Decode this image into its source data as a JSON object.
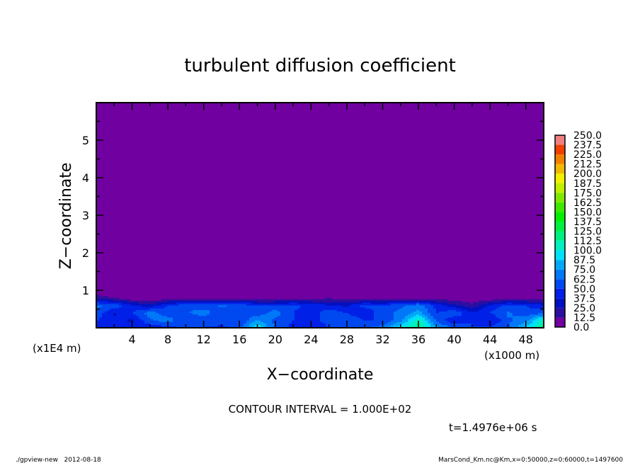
{
  "chart_data": {
    "type": "heatmap",
    "title": "turbulent diffusion coefficient",
    "xlabel": "X−coordinate",
    "ylabel": "Z−coordinate",
    "x_unit": "(x1000 m)",
    "y_unit": "(x1E4 m)",
    "xlim": [
      0,
      50
    ],
    "ylim": [
      0,
      6
    ],
    "x_ticks": [
      4,
      8,
      12,
      16,
      20,
      24,
      28,
      32,
      36,
      40,
      44,
      48
    ],
    "y_ticks": [
      1,
      2,
      3,
      4,
      5
    ],
    "grid": false,
    "colorbar": {
      "placement": "right",
      "levels": [
        "0.0",
        "12.5",
        "25.0",
        "37.5",
        "50.0",
        "62.5",
        "75.0",
        "87.5",
        "100.0",
        "112.5",
        "125.0",
        "137.5",
        "150.0",
        "162.5",
        "175.0",
        "187.5",
        "200.0",
        "212.5",
        "225.0",
        "237.5",
        "250.0"
      ],
      "colors": [
        "#7000a0",
        "#2a10a0",
        "#0010c0",
        "#0020e8",
        "#0048f0",
        "#0078f8",
        "#00a8f8",
        "#00e0f8",
        "#00f0c0",
        "#00f080",
        "#00f040",
        "#00f000",
        "#40e800",
        "#80e800",
        "#c0f000",
        "#f0f000",
        "#f0b800",
        "#f08000",
        "#f04000",
        "#f08080"
      ]
    },
    "x": [
      0,
      2,
      4,
      6,
      8,
      10,
      12,
      14,
      16,
      18,
      20,
      22,
      24,
      26,
      28,
      30,
      32,
      34,
      36,
      38,
      40,
      42,
      44,
      46,
      48,
      50
    ],
    "z": [
      0,
      0.2,
      0.4,
      0.6,
      0.8,
      1.0
    ],
    "values": [
      [
        40,
        45,
        50,
        40,
        45,
        55,
        50,
        45,
        60,
        100,
        60,
        45,
        40,
        50,
        55,
        60,
        70,
        100,
        120,
        80,
        60,
        50,
        55,
        60,
        90,
        120
      ],
      [
        50,
        40,
        35,
        60,
        70,
        50,
        55,
        60,
        50,
        75,
        60,
        50,
        45,
        55,
        60,
        50,
        50,
        70,
        110,
        60,
        40,
        50,
        35,
        60,
        70,
        110
      ],
      [
        60,
        35,
        50,
        70,
        55,
        60,
        70,
        50,
        60,
        55,
        70,
        50,
        40,
        60,
        50,
        40,
        60,
        65,
        80,
        50,
        60,
        40,
        50,
        65,
        55,
        60
      ],
      [
        65,
        60,
        40,
        30,
        50,
        60,
        55,
        65,
        60,
        50,
        50,
        55,
        45,
        40,
        35,
        55,
        50,
        60,
        70,
        45,
        30,
        15,
        40,
        55,
        50,
        40
      ],
      [
        20,
        10,
        0,
        0,
        0,
        0,
        5,
        5,
        0,
        0,
        0,
        0,
        5,
        10,
        5,
        0,
        0,
        5,
        5,
        5,
        0,
        0,
        0,
        0,
        0,
        0
      ],
      [
        0,
        0,
        0,
        0,
        0,
        0,
        0,
        0,
        0,
        0,
        0,
        0,
        0,
        0,
        0,
        0,
        0,
        0,
        0,
        0,
        0,
        0,
        0,
        0,
        0,
        0
      ]
    ],
    "contour_interval": "CONTOUR INTERVAL = 1.000E+02",
    "time_label": "t=1.4976e+06 s"
  },
  "footer": {
    "left": "./gpview-new   2012-08-18",
    "right": "MarsCond_Km.nc@Km,x=0:50000,z=0:60000,t=1497600"
  }
}
